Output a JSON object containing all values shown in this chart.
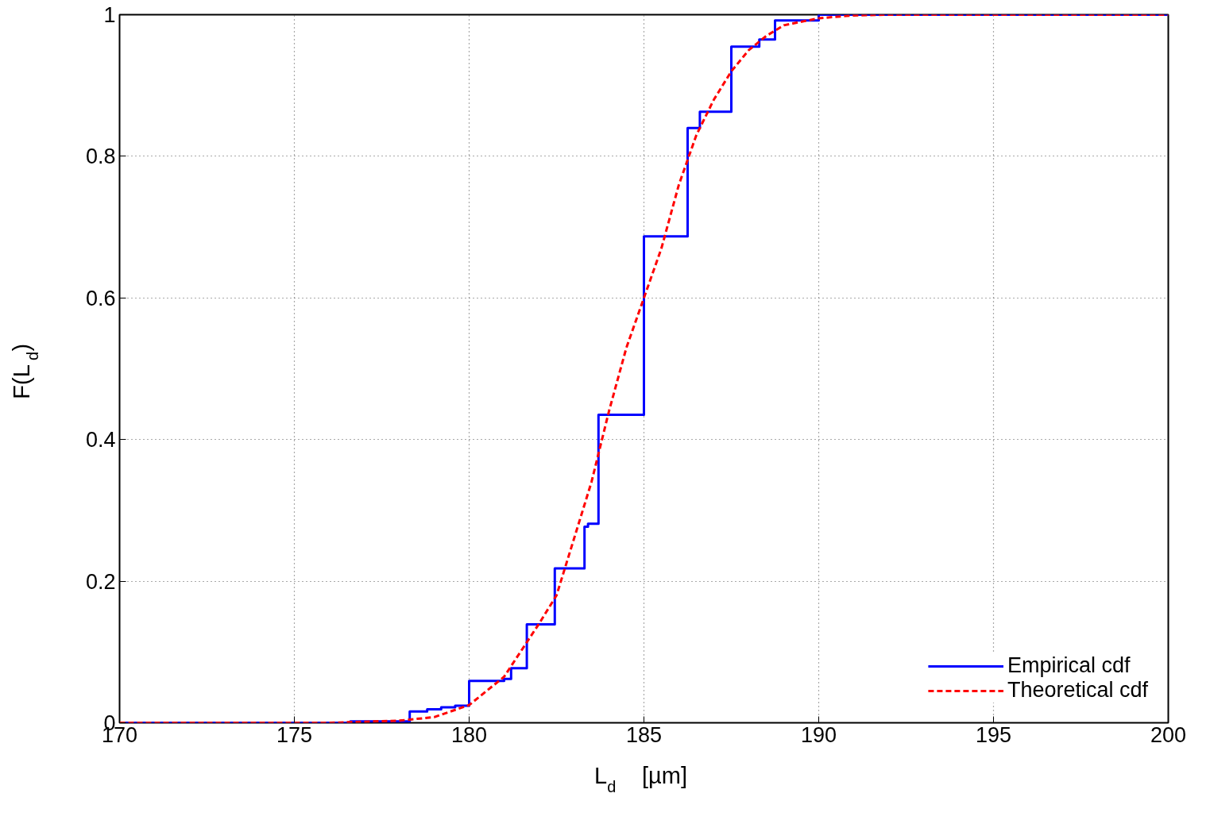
{
  "chart_data": {
    "type": "line",
    "xlabel": "L$_{d}$  [µm]",
    "ylabel": "F(L$_{d}$)",
    "xlim": [
      170,
      200
    ],
    "ylim": [
      0,
      1
    ],
    "xticks": [
      170,
      175,
      180,
      185,
      190,
      195,
      200
    ],
    "yticks": [
      0,
      0.2,
      0.4,
      0.6,
      0.8,
      1
    ],
    "grid": true,
    "legend": "bottom right",
    "series": [
      {
        "name": "Empirical cdf",
        "type": "step",
        "color": "#0000ff",
        "line_style": "solid",
        "x": [
          170,
          176.6,
          178.3,
          178.8,
          179.2,
          179.6,
          180.0,
          181.0,
          181.2,
          181.65,
          182.45,
          183.3,
          183.4,
          183.7,
          185.0,
          186.25,
          186.6,
          187.5,
          188.3,
          188.75,
          190.0,
          200
        ],
        "values": [
          0,
          0.002,
          0.016,
          0.019,
          0.022,
          0.024,
          0.059,
          0.062,
          0.077,
          0.139,
          0.218,
          0.277,
          0.281,
          0.435,
          0.687,
          0.84,
          0.863,
          0.955,
          0.965,
          0.992,
          1,
          1
        ]
      },
      {
        "name": "Theoretical cdf",
        "color": "#ff0000",
        "line_style": "dashed",
        "x": [
          170,
          176,
          178,
          179,
          180,
          181,
          182,
          182.5,
          183,
          183.5,
          184,
          184.5,
          185,
          185.5,
          186,
          186.5,
          187,
          187.5,
          188,
          188.5,
          189,
          190,
          191,
          192,
          200
        ],
        "values": [
          0,
          0,
          0.003,
          0.008,
          0.025,
          0.065,
          0.14,
          0.18,
          0.26,
          0.34,
          0.44,
          0.53,
          0.6,
          0.67,
          0.76,
          0.83,
          0.88,
          0.92,
          0.95,
          0.97,
          0.985,
          0.995,
          0.999,
          1,
          1
        ]
      }
    ]
  }
}
